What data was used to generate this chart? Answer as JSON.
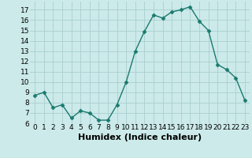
{
  "x": [
    0,
    1,
    2,
    3,
    4,
    5,
    6,
    7,
    8,
    9,
    10,
    11,
    12,
    13,
    14,
    15,
    16,
    17,
    18,
    19,
    20,
    21,
    22,
    23
  ],
  "y": [
    8.7,
    9.0,
    7.5,
    7.8,
    6.5,
    7.2,
    7.0,
    6.3,
    6.3,
    7.8,
    10.0,
    13.0,
    14.9,
    16.5,
    16.2,
    16.8,
    17.0,
    17.3,
    15.9,
    15.0,
    11.7,
    11.2,
    10.4,
    8.2
  ],
  "line_color": "#1a7a6e",
  "marker": "D",
  "marker_size": 2.5,
  "bg_color": "#cceaea",
  "grid_color": "#aacece",
  "xlabel": "Humidex (Indice chaleur)",
  "ylabel": "",
  "xlim": [
    -0.5,
    23.5
  ],
  "ylim": [
    6,
    17.8
  ],
  "yticks": [
    6,
    7,
    8,
    9,
    10,
    11,
    12,
    13,
    14,
    15,
    16,
    17
  ],
  "xtick_labels": [
    "0",
    "1",
    "2",
    "3",
    "4",
    "5",
    "6",
    "7",
    "8",
    "9",
    "10",
    "11",
    "12",
    "13",
    "14",
    "15",
    "16",
    "17",
    "18",
    "19",
    "20",
    "21",
    "22",
    "23"
  ],
  "tick_fontsize": 6.5,
  "xlabel_fontsize": 8.0,
  "xlabel_fontweight": "bold",
  "linewidth": 1.0
}
